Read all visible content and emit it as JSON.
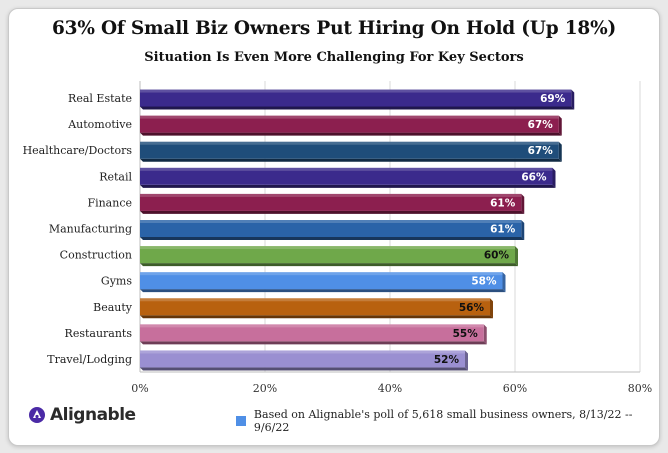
{
  "header": {
    "title": "63% Of Small Biz Owners Put Hiring On Hold (Up 18%)",
    "subtitle": "Situation Is Even More Challenging For Key Sectors"
  },
  "brand": {
    "logo_text": "Alignable",
    "logo_icon": "alignable-logo-icon"
  },
  "footnote": {
    "text": "Based on Alignable's poll of 5,618 small business owners, 8/13/22 -- 9/6/22",
    "swatch_color": "#4f8fe6"
  },
  "chart_data": {
    "type": "bar",
    "orientation": "horizontal",
    "title": "63% Of Small Biz Owners Put Hiring On Hold (Up 18%)",
    "subtitle": "Situation Is Even More Challenging For Key Sectors",
    "categories": [
      "Real Estate",
      "Automotive",
      "Healthcare/Doctors",
      "Retail",
      "Finance",
      "Manufacturing",
      "Construction",
      "Gyms",
      "Beauty",
      "Restaurants",
      "Travel/Lodging"
    ],
    "values": [
      69,
      67,
      67,
      66,
      61,
      61,
      60,
      58,
      56,
      55,
      52
    ],
    "value_labels": [
      "69%",
      "67%",
      "67%",
      "66%",
      "61%",
      "61%",
      "60%",
      "58%",
      "56%",
      "55%",
      "52%"
    ],
    "colors": [
      "#3b2a8c",
      "#8c1f4f",
      "#1f4d7a",
      "#3b2a8c",
      "#8c1f4f",
      "#2a63a8",
      "#6fa84a",
      "#4f8fe6",
      "#b8610f",
      "#c76f9c",
      "#9a8fd1"
    ],
    "label_colors": [
      "#ffffff",
      "#ffffff",
      "#ffffff",
      "#ffffff",
      "#ffffff",
      "#ffffff",
      "#111111",
      "#ffffff",
      "#111111",
      "#111111",
      "#111111"
    ],
    "xlim": [
      0,
      80
    ],
    "x_ticks": [
      0,
      20,
      40,
      60,
      80
    ],
    "x_tick_labels": [
      "0%",
      "20%",
      "40%",
      "60%",
      "80%"
    ],
    "grid": true,
    "xlabel": "",
    "ylabel": ""
  }
}
